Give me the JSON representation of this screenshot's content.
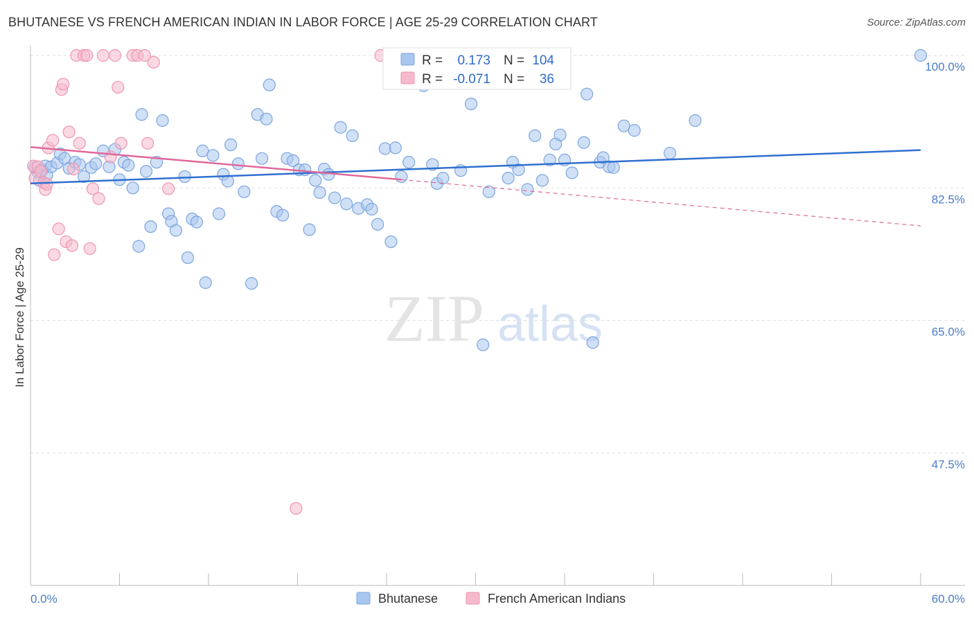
{
  "title": "BHUTANESE VS FRENCH AMERICAN INDIAN IN LABOR FORCE | AGE 25-29 CORRELATION CHART",
  "source": "Source: ZipAtlas.com",
  "watermark": {
    "zip": "ZIP",
    "atlas": "atlas"
  },
  "colors": {
    "blue_fill": "#a9c6ef",
    "blue_stroke": "#7ba5df",
    "blue_line": "#2f6fd0",
    "pink_fill": "#f6b9cc",
    "pink_stroke": "#ef94b2",
    "pink_line": "#e0679a",
    "tick_text": "#4a7cc7",
    "grid": "#dddddd"
  },
  "legend": {
    "rows": [
      {
        "r_label": "R =",
        "r_value": "0.173",
        "n_label": "N =",
        "n_value": "104"
      },
      {
        "r_label": "R =",
        "r_value": "-0.071",
        "n_label": "N =",
        "n_value": "36"
      }
    ]
  },
  "chart_data": {
    "type": "scatter",
    "ylabel": "In Labor Force | Age 25-29",
    "xlim": [
      0,
      60
    ],
    "ylim": [
      30,
      102
    ],
    "x_tick_labels": {
      "left": "0.0%",
      "right": "60.0%"
    },
    "y_ticks": [
      {
        "value": 100.0,
        "label": "100.0%"
      },
      {
        "value": 82.5,
        "label": "82.5%"
      },
      {
        "value": 65.0,
        "label": "65.0%"
      },
      {
        "value": 47.5,
        "label": "47.5%"
      }
    ],
    "series": [
      {
        "name": "Bhutanese",
        "color": "#a9c6ef",
        "trend": {
          "x0": 0,
          "y0": 83.1,
          "x1": 60,
          "y1": 87.5,
          "dashed_to": null
        },
        "points": [
          [
            0.3,
            85.2
          ],
          [
            0.5,
            84.6
          ],
          [
            0.6,
            83.5
          ],
          [
            0.8,
            84.9
          ],
          [
            1.0,
            85.4
          ],
          [
            1.1,
            84.2
          ],
          [
            1.4,
            85.3
          ],
          [
            1.8,
            85.8
          ],
          [
            2.0,
            87.0
          ],
          [
            2.3,
            86.4
          ],
          [
            2.6,
            85.1
          ],
          [
            3.0,
            85.9
          ],
          [
            3.3,
            85.6
          ],
          [
            3.6,
            84.0
          ],
          [
            4.1,
            85.2
          ],
          [
            4.4,
            85.7
          ],
          [
            4.9,
            87.4
          ],
          [
            5.3,
            85.3
          ],
          [
            5.7,
            87.6
          ],
          [
            6.0,
            83.6
          ],
          [
            6.3,
            85.9
          ],
          [
            6.6,
            85.5
          ],
          [
            6.9,
            82.5
          ],
          [
            7.3,
            74.8
          ],
          [
            7.5,
            92.2
          ],
          [
            7.8,
            84.7
          ],
          [
            8.1,
            77.4
          ],
          [
            8.5,
            85.9
          ],
          [
            8.9,
            91.4
          ],
          [
            9.3,
            79.1
          ],
          [
            9.5,
            78.1
          ],
          [
            9.8,
            76.9
          ],
          [
            10.4,
            84.0
          ],
          [
            10.6,
            73.3
          ],
          [
            10.9,
            78.4
          ],
          [
            11.2,
            78.0
          ],
          [
            11.6,
            87.4
          ],
          [
            11.8,
            70.0
          ],
          [
            12.3,
            86.8
          ],
          [
            12.7,
            79.1
          ],
          [
            13.0,
            84.3
          ],
          [
            13.3,
            83.4
          ],
          [
            13.5,
            88.2
          ],
          [
            14.0,
            85.7
          ],
          [
            14.4,
            82.0
          ],
          [
            14.9,
            69.9
          ],
          [
            15.3,
            92.2
          ],
          [
            15.6,
            86.4
          ],
          [
            15.9,
            91.6
          ],
          [
            16.1,
            96.1
          ],
          [
            16.6,
            79.4
          ],
          [
            17.0,
            78.9
          ],
          [
            17.3,
            86.4
          ],
          [
            17.7,
            86.1
          ],
          [
            18.1,
            84.9
          ],
          [
            18.5,
            84.9
          ],
          [
            18.8,
            77.0
          ],
          [
            19.2,
            83.5
          ],
          [
            19.5,
            81.9
          ],
          [
            19.8,
            85.0
          ],
          [
            20.1,
            84.3
          ],
          [
            20.5,
            81.2
          ],
          [
            20.9,
            90.5
          ],
          [
            21.3,
            80.4
          ],
          [
            21.7,
            89.4
          ],
          [
            22.1,
            79.8
          ],
          [
            22.7,
            80.3
          ],
          [
            23.0,
            79.7
          ],
          [
            23.4,
            77.7
          ],
          [
            23.9,
            87.7
          ],
          [
            24.3,
            75.4
          ],
          [
            24.6,
            87.8
          ],
          [
            25.0,
            84.0
          ],
          [
            25.5,
            85.9
          ],
          [
            26.5,
            96.0
          ],
          [
            27.1,
            85.6
          ],
          [
            27.4,
            83.1
          ],
          [
            27.8,
            83.8
          ],
          [
            29.0,
            84.8
          ],
          [
            29.7,
            93.6
          ],
          [
            30.5,
            61.8
          ],
          [
            30.9,
            82.0
          ],
          [
            32.2,
            83.8
          ],
          [
            32.5,
            85.9
          ],
          [
            32.9,
            84.9
          ],
          [
            33.5,
            82.3
          ],
          [
            34.0,
            89.4
          ],
          [
            34.5,
            83.5
          ],
          [
            35.0,
            86.2
          ],
          [
            35.4,
            88.3
          ],
          [
            35.7,
            89.5
          ],
          [
            36.0,
            86.2
          ],
          [
            36.5,
            84.5
          ],
          [
            37.3,
            88.5
          ],
          [
            37.5,
            94.9
          ],
          [
            37.9,
            62.1
          ],
          [
            38.4,
            85.9
          ],
          [
            38.6,
            86.5
          ],
          [
            39.0,
            85.3
          ],
          [
            39.3,
            85.2
          ],
          [
            40.0,
            90.7
          ],
          [
            40.7,
            90.1
          ],
          [
            43.1,
            87.1
          ],
          [
            44.8,
            91.4
          ],
          [
            60.0,
            100.0
          ]
        ]
      },
      {
        "name": "French American Indians",
        "color": "#f6b9cc",
        "trend": {
          "x0": 0,
          "y0": 87.9,
          "x1": 25,
          "y1": 83.6,
          "dashed_to": [
            60,
            77.5
          ]
        },
        "points": [
          [
            0.2,
            85.4
          ],
          [
            0.3,
            83.8
          ],
          [
            0.5,
            85.3
          ],
          [
            0.7,
            84.7
          ],
          [
            0.9,
            83.2
          ],
          [
            1.0,
            82.3
          ],
          [
            1.1,
            83.0
          ],
          [
            1.2,
            87.8
          ],
          [
            1.5,
            88.8
          ],
          [
            1.9,
            77.1
          ],
          [
            2.1,
            95.5
          ],
          [
            2.2,
            96.2
          ],
          [
            2.4,
            75.4
          ],
          [
            2.6,
            89.9
          ],
          [
            2.8,
            74.9
          ],
          [
            2.9,
            85.0
          ],
          [
            3.1,
            100.0
          ],
          [
            3.3,
            88.4
          ],
          [
            3.6,
            100.0
          ],
          [
            3.8,
            100.0
          ],
          [
            4.0,
            74.5
          ],
          [
            4.2,
            82.4
          ],
          [
            4.6,
            81.1
          ],
          [
            4.9,
            100.0
          ],
          [
            5.4,
            86.6
          ],
          [
            5.7,
            100.0
          ],
          [
            5.9,
            95.8
          ],
          [
            6.1,
            88.4
          ],
          [
            6.9,
            100.0
          ],
          [
            7.2,
            100.0
          ],
          [
            7.7,
            100.0
          ],
          [
            7.9,
            88.4
          ],
          [
            8.3,
            99.1
          ],
          [
            9.3,
            82.4
          ],
          [
            1.6,
            73.7
          ],
          [
            17.9,
            40.2
          ],
          [
            23.6,
            100.0
          ]
        ]
      }
    ],
    "legend_position": "top-center"
  }
}
